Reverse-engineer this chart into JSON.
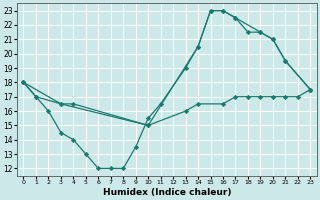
{
  "xlabel": "Humidex (Indice chaleur)",
  "bg_color": "#cce8e8",
  "grid_color": "#ffffff",
  "line_color": "#1a7a6e",
  "xlim": [
    -0.5,
    23.5
  ],
  "ylim": [
    11.5,
    23.5
  ],
  "xticks": [
    0,
    1,
    2,
    3,
    4,
    5,
    6,
    7,
    8,
    9,
    10,
    11,
    12,
    13,
    14,
    15,
    16,
    17,
    18,
    19,
    20,
    21,
    22,
    23
  ],
  "yticks": [
    12,
    13,
    14,
    15,
    16,
    17,
    18,
    19,
    20,
    21,
    22,
    23
  ],
  "line_zigzag": {
    "x": [
      0,
      1,
      2,
      3,
      4,
      5,
      6,
      7,
      8,
      9,
      10,
      11,
      13,
      14,
      15,
      16,
      17,
      19,
      20,
      21,
      23
    ],
    "y": [
      18,
      17,
      16,
      14.5,
      14,
      13,
      12,
      12,
      12,
      13.5,
      15.5,
      16.5,
      19,
      20.5,
      23,
      23,
      22.5,
      21.5,
      21,
      19.5,
      17.5
    ]
  },
  "line_upper": {
    "x": [
      0,
      3,
      4,
      10,
      14,
      15,
      16,
      17,
      18,
      19,
      20,
      21,
      23
    ],
    "y": [
      18,
      16.5,
      16.5,
      15,
      20.5,
      23,
      23,
      22.5,
      21.5,
      21.5,
      21,
      19.5,
      17.5
    ]
  },
  "line_lower": {
    "x": [
      0,
      1,
      3,
      10,
      13,
      14,
      16,
      17,
      18,
      19,
      20,
      21,
      22,
      23
    ],
    "y": [
      18,
      17,
      16.5,
      15,
      16,
      16.5,
      16.5,
      17,
      17,
      17,
      17,
      17,
      17,
      17.5
    ]
  }
}
